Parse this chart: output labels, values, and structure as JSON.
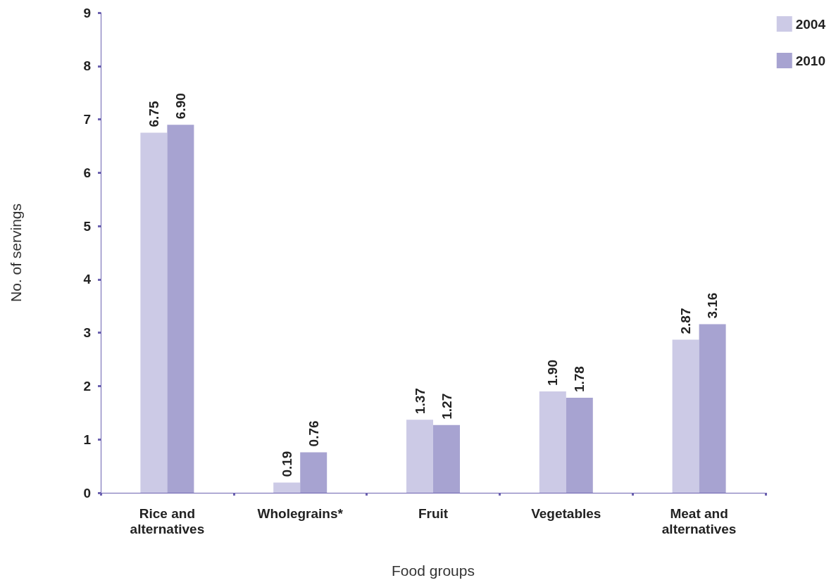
{
  "chart_data": {
    "type": "bar",
    "xlabel": "Food groups",
    "ylabel": "No. of servings",
    "categories": [
      "Rice and\nalternatives",
      "Wholegrains*",
      "Fruit",
      "Vegetables",
      "Meat and\nalternatives"
    ],
    "series": [
      {
        "name": "2004",
        "color": "#cccae6",
        "values": [
          6.75,
          0.19,
          1.37,
          1.9,
          2.87
        ],
        "value_labels": [
          "6.75",
          "0.19",
          "1.37",
          "1.90",
          "2.87"
        ]
      },
      {
        "name": "2010",
        "color": "#a7a3d1",
        "values": [
          6.9,
          0.76,
          1.27,
          1.78,
          3.16
        ],
        "value_labels": [
          "6.90",
          "0.76",
          "1.27",
          "1.78",
          "3.16"
        ]
      }
    ],
    "ylim": [
      0,
      9
    ],
    "yticks": [
      0,
      1,
      2,
      3,
      4,
      5,
      6,
      7,
      8,
      9
    ],
    "grid": false,
    "legend": "top right"
  }
}
